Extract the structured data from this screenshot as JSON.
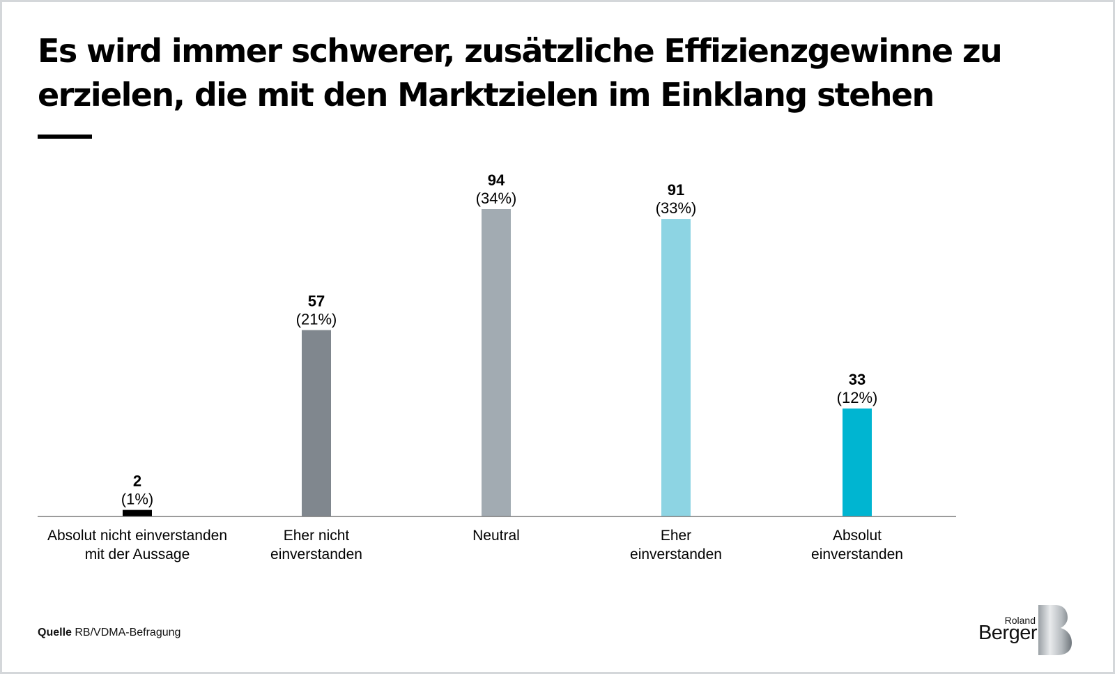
{
  "title": "Es wird immer schwerer, zusätzliche Effizienzgewinne zu erzielen, die mit den Marktzielen im Einklang stehen",
  "source": {
    "label": "Quelle",
    "text": "RB/VDMA-Befragung"
  },
  "logo": {
    "line1": "Roland",
    "line2": "Berger"
  },
  "chart_data": {
    "type": "bar",
    "title": "Es wird immer schwerer, zusätzliche Effizienzgewinne zu erzielen, die mit den Marktzielen im Einklang stehen",
    "xlabel": "",
    "ylabel": "",
    "ylim": [
      0,
      94
    ],
    "grid": false,
    "categories": [
      "Absolut nicht einverstanden mit der Aussage",
      "Eher nicht einverstanden",
      "Neutral",
      "Eher einverstanden",
      "Absolut einverstanden"
    ],
    "category_lines": [
      [
        "Absolut nicht einverstanden",
        "mit der Aussage"
      ],
      [
        "Eher nicht",
        "einverstanden"
      ],
      [
        "Neutral"
      ],
      [
        "Eher",
        "einverstanden"
      ],
      [
        "Absolut",
        "einverstanden"
      ]
    ],
    "values": [
      2,
      57,
      94,
      91,
      33
    ],
    "value_labels": [
      "2",
      "57",
      "94",
      "91",
      "33"
    ],
    "percent_labels": [
      "(1%)",
      "(21%)",
      "(34%)",
      "(33%)",
      "(12%)"
    ],
    "percents": [
      1,
      21,
      34,
      33,
      12
    ],
    "colors": [
      "#000000",
      "#80878e",
      "#a2abb2",
      "#8dd4e3",
      "#00b5d1"
    ],
    "axis_color": "#7a7a7a"
  }
}
